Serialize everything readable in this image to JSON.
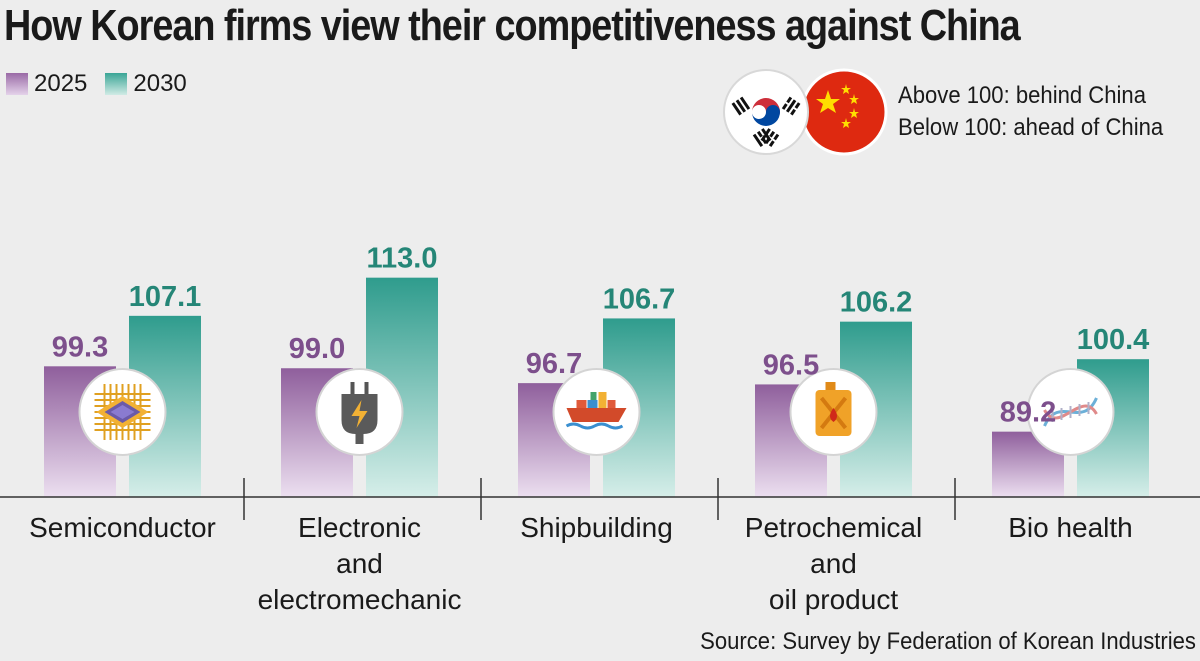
{
  "title": "How Korean firms view their competitiveness against China",
  "note": {
    "above": "Above 100: behind China",
    "below": "Below 100: ahead of China"
  },
  "source": "Source: Survey by Federation of Korean Industries",
  "colors": {
    "c2025_top": "#8f5f9c",
    "c2025_bottom": "#ecdff0",
    "c2030_top": "#2f9c8d",
    "c2030_bottom": "#d6eee9",
    "korea_red": "#cd2e3a",
    "korea_blue": "#0047a0",
    "china_red": "#de2910",
    "china_yellow": "#ffde00"
  },
  "icons": [
    "chip-icon",
    "plug-icon",
    "ship-icon",
    "fuel-can-icon",
    "dna-icon"
  ],
  "chart_data": {
    "type": "bar",
    "categories": [
      [
        "Semiconductor"
      ],
      [
        "Electronic",
        "and",
        "electromechanic"
      ],
      [
        "Shipbuilding"
      ],
      [
        "Petrochemical",
        "and",
        "oil product"
      ],
      [
        "Bio health"
      ]
    ],
    "series": [
      {
        "name": "2025",
        "values": [
          99.3,
          99.0,
          96.7,
          96.5,
          89.2
        ]
      },
      {
        "name": "2030",
        "values": [
          107.1,
          113.0,
          106.7,
          106.2,
          100.4
        ]
      }
    ],
    "value_labels": {
      "2025": [
        "99.3",
        "99.0",
        "96.7",
        "96.5",
        "89.2"
      ],
      "2030": [
        "107.1",
        "113.0",
        "106.7",
        "106.2",
        "100.4"
      ]
    },
    "legend_position": "top-left",
    "grid": false
  }
}
